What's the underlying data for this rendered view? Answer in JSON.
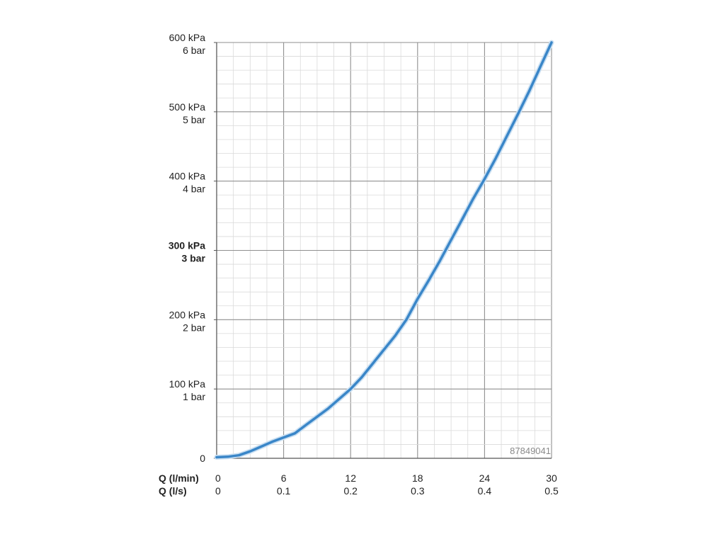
{
  "chart_data": {
    "type": "line",
    "x_unit_label": "Q (l/min)",
    "x2_unit_label": "Q (l/s)",
    "xlim": [
      0,
      30
    ],
    "ylim": [
      0,
      600
    ],
    "x_ticks": [
      "0",
      "6",
      "12",
      "18",
      "24",
      "30"
    ],
    "x2_ticks": [
      "0",
      "0.1",
      "0.2",
      "0.3",
      "0.4",
      "0.5"
    ],
    "y_ticks": [
      {
        "value": 0,
        "kpa": "0",
        "bar": ""
      },
      {
        "value": 100,
        "kpa": "100 kPa",
        "bar": "1 bar"
      },
      {
        "value": 200,
        "kpa": "200 kPa",
        "bar": "2 bar"
      },
      {
        "value": 300,
        "kpa": "300 kPa",
        "bar": "3 bar",
        "bold": true
      },
      {
        "value": 400,
        "kpa": "400 kPa",
        "bar": "4 bar"
      },
      {
        "value": 500,
        "kpa": "500 kPa",
        "bar": "5 bar"
      },
      {
        "value": 600,
        "kpa": "600 kPa",
        "bar": "6 bar"
      }
    ],
    "grid": true,
    "series": [
      {
        "color": "#3a86c8",
        "x": [
          0,
          1,
          2,
          3,
          4,
          5,
          6,
          7,
          8,
          9,
          10,
          11,
          12,
          13,
          14,
          15,
          16,
          17,
          18,
          19,
          20,
          21,
          22,
          23,
          24,
          25,
          26,
          27,
          28,
          29,
          30
        ],
        "y": [
          1.5,
          2.2,
          4.4,
          10,
          17,
          24,
          30,
          36,
          48,
          60,
          72,
          86,
          100,
          117,
          137,
          157,
          177,
          200,
          230,
          257,
          285,
          315,
          345,
          375,
          403,
          433,
          465,
          497,
          530,
          565,
          600
        ]
      }
    ],
    "annotation": "87849041"
  }
}
